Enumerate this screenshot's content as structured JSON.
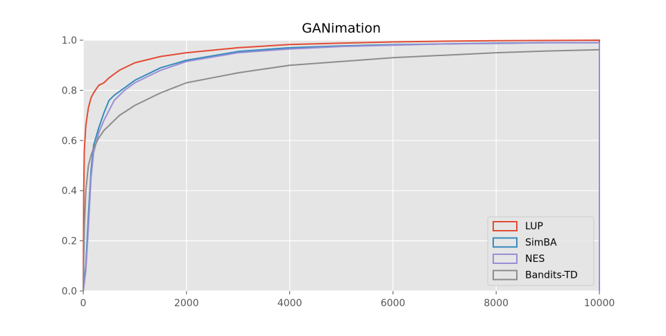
{
  "chart_data": {
    "type": "line",
    "title": "GANimation",
    "xlabel": "",
    "ylabel": "",
    "xlim": [
      0,
      10000
    ],
    "ylim": [
      0,
      1.0
    ],
    "x_ticks": [
      0,
      2000,
      4000,
      6000,
      8000,
      10000
    ],
    "x_tick_labels": [
      "0",
      "2000",
      "4000",
      "6000",
      "8000",
      "10000"
    ],
    "y_ticks": [
      0.0,
      0.2,
      0.4,
      0.6,
      0.8,
      1.0
    ],
    "y_tick_labels": [
      "0.0",
      "0.2",
      "0.4",
      "0.6",
      "0.8",
      "1.0"
    ],
    "grid": true,
    "background": "#e5e5e5",
    "legend_position": "bottom-right",
    "series": [
      {
        "name": "LUP",
        "color": "#e24a33",
        "x": [
          0,
          10,
          20,
          50,
          100,
          150,
          200,
          300,
          400,
          500,
          700,
          1000,
          1500,
          2000,
          3000,
          4000,
          5000,
          6000,
          7000,
          8000,
          9000,
          10000,
          10000
        ],
        "y": [
          0,
          0.4,
          0.56,
          0.66,
          0.73,
          0.77,
          0.79,
          0.82,
          0.83,
          0.85,
          0.88,
          0.91,
          0.935,
          0.95,
          0.97,
          0.983,
          0.988,
          0.993,
          0.996,
          0.998,
          0.999,
          1.0,
          0.0
        ]
      },
      {
        "name": "SimBA",
        "color": "#348abd",
        "x": [
          0,
          50,
          100,
          150,
          200,
          300,
          400,
          500,
          600,
          800,
          1000,
          1500,
          2000,
          3000,
          4000,
          5000,
          6000,
          7000,
          8000,
          9000,
          10000,
          10000
        ],
        "y": [
          0,
          0.1,
          0.3,
          0.48,
          0.58,
          0.65,
          0.71,
          0.76,
          0.78,
          0.81,
          0.84,
          0.89,
          0.92,
          0.955,
          0.97,
          0.977,
          0.982,
          0.985,
          0.988,
          0.99,
          0.99,
          0.0
        ]
      },
      {
        "name": "NES",
        "color": "#988ed5",
        "x": [
          0,
          50,
          100,
          150,
          200,
          300,
          400,
          500,
          600,
          800,
          1000,
          1500,
          2000,
          3000,
          4000,
          5000,
          6000,
          7000,
          8000,
          9000,
          10000,
          10000
        ],
        "y": [
          0,
          0.08,
          0.25,
          0.45,
          0.55,
          0.63,
          0.68,
          0.72,
          0.76,
          0.8,
          0.83,
          0.88,
          0.915,
          0.95,
          0.965,
          0.975,
          0.98,
          0.985,
          0.987,
          0.99,
          0.99,
          0.0
        ]
      },
      {
        "name": "Bandits-TD",
        "color": "#8c8c8c",
        "x": [
          0,
          20,
          50,
          100,
          150,
          200,
          300,
          400,
          500,
          700,
          1000,
          1500,
          2000,
          2500,
          3000,
          4000,
          5000,
          6000,
          7000,
          8000,
          9000,
          10000
        ],
        "y": [
          0,
          0.25,
          0.4,
          0.5,
          0.54,
          0.57,
          0.61,
          0.64,
          0.66,
          0.7,
          0.74,
          0.79,
          0.83,
          0.85,
          0.87,
          0.9,
          0.915,
          0.93,
          0.94,
          0.95,
          0.957,
          0.962
        ]
      }
    ]
  }
}
